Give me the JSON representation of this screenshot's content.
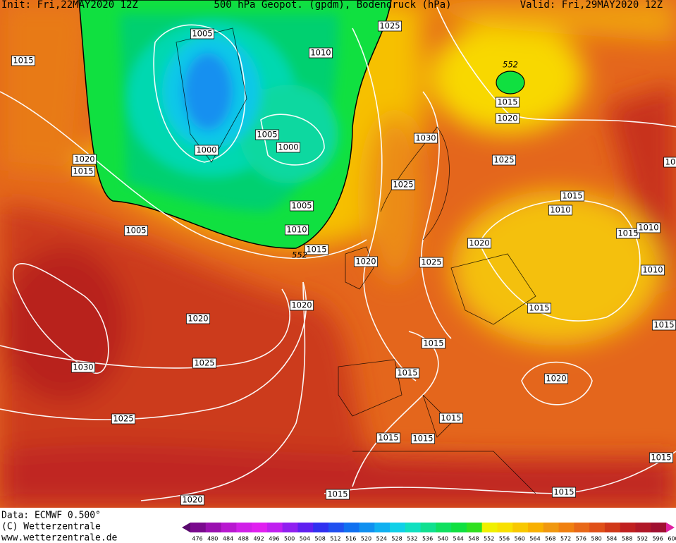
{
  "header": {
    "init": "Init: Fri,22MAY2020 12Z",
    "title": "500 hPa Geopot. (gpdm), Bodendruck (hPa)",
    "valid": "Valid: Fri,29MAY2020 12Z"
  },
  "isobar_labels": [
    "1015",
    "1005",
    "1010",
    "1025",
    "552",
    "1015",
    "1020",
    "1005",
    "1000",
    "1000",
    "1030",
    "1025",
    "1020",
    "1015",
    "1025",
    "1015",
    "1010",
    "1005",
    "1005",
    "1010",
    "1015",
    "1010",
    "1020",
    "1015",
    "552",
    "1020",
    "1025",
    "1010",
    "1020",
    "1015",
    "1015",
    "1020",
    "1015",
    "1030",
    "1025",
    "1015",
    "1020",
    "1025",
    "1015",
    "1015",
    "1015",
    "1015",
    "1015",
    "1015",
    "1020",
    "10"
  ],
  "footer": {
    "data": "Data: ECMWF  0.500°",
    "copyright": "(C) Wetterzentrale",
    "url": "www.wetterzentrale.de"
  },
  "colorbar": {
    "ticks": [
      476,
      480,
      484,
      488,
      492,
      496,
      500,
      504,
      508,
      512,
      516,
      520,
      524,
      528,
      532,
      536,
      540,
      544,
      548,
      552,
      556,
      560,
      564,
      568,
      572,
      576,
      580,
      584,
      588,
      592,
      596,
      600
    ]
  }
}
